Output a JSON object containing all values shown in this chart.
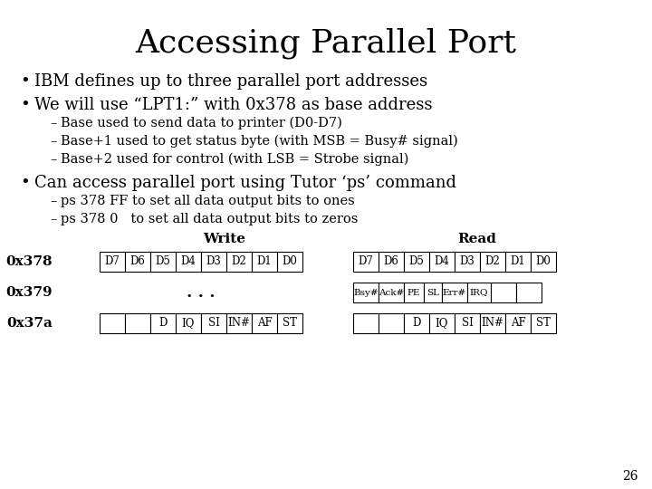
{
  "title": "Accessing Parallel Port",
  "bullet1": "IBM defines up to three parallel port addresses",
  "bullet2": "We will use “LPT1:” with 0x378 as base address",
  "sub_bullets_1": [
    "Base used to send data to printer (D0-D7)",
    "Base+1 used to get status byte (with MSB = Busy# signal)",
    "Base+2 used for control (with LSB = Strobe signal)"
  ],
  "bullet3": "Can access parallel port using Tutor ‘ps’ command",
  "sub_bullets_2": [
    "ps 378 FF to set all data output bits to ones",
    "ps 378 0   to set all data output bits to zeros"
  ],
  "write_label": "Write",
  "read_label": "Read",
  "row_labels": [
    "0x378",
    "0x379",
    "0x37a"
  ],
  "write_0x378": [
    "D7",
    "D6",
    "D5",
    "D4",
    "D3",
    "D2",
    "D1",
    "D0"
  ],
  "read_0x378": [
    "D7",
    "D6",
    "D5",
    "D4",
    "D3",
    "D2",
    "D1",
    "D0"
  ],
  "write_0x379_text": ". . .",
  "read_0x379": [
    "Bsy#",
    "Ack#",
    "PE",
    "SL",
    "Err#",
    "IRQ",
    "",
    ""
  ],
  "write_0x37a": [
    "",
    "",
    "D",
    "IQ",
    "SI",
    "IN#",
    "AF",
    "ST"
  ],
  "read_0x37a": [
    "",
    "",
    "D",
    "IQ",
    "SI",
    "IN#",
    "AF",
    "ST"
  ],
  "page_number": "26",
  "bg_color": "#ffffff",
  "text_color": "#000000",
  "title_fontsize": 26,
  "body_fontsize": 13,
  "sub_fontsize": 10.5,
  "table_label_fontsize": 11,
  "table_fontsize": 8.5,
  "row_label_fontsize": 11
}
